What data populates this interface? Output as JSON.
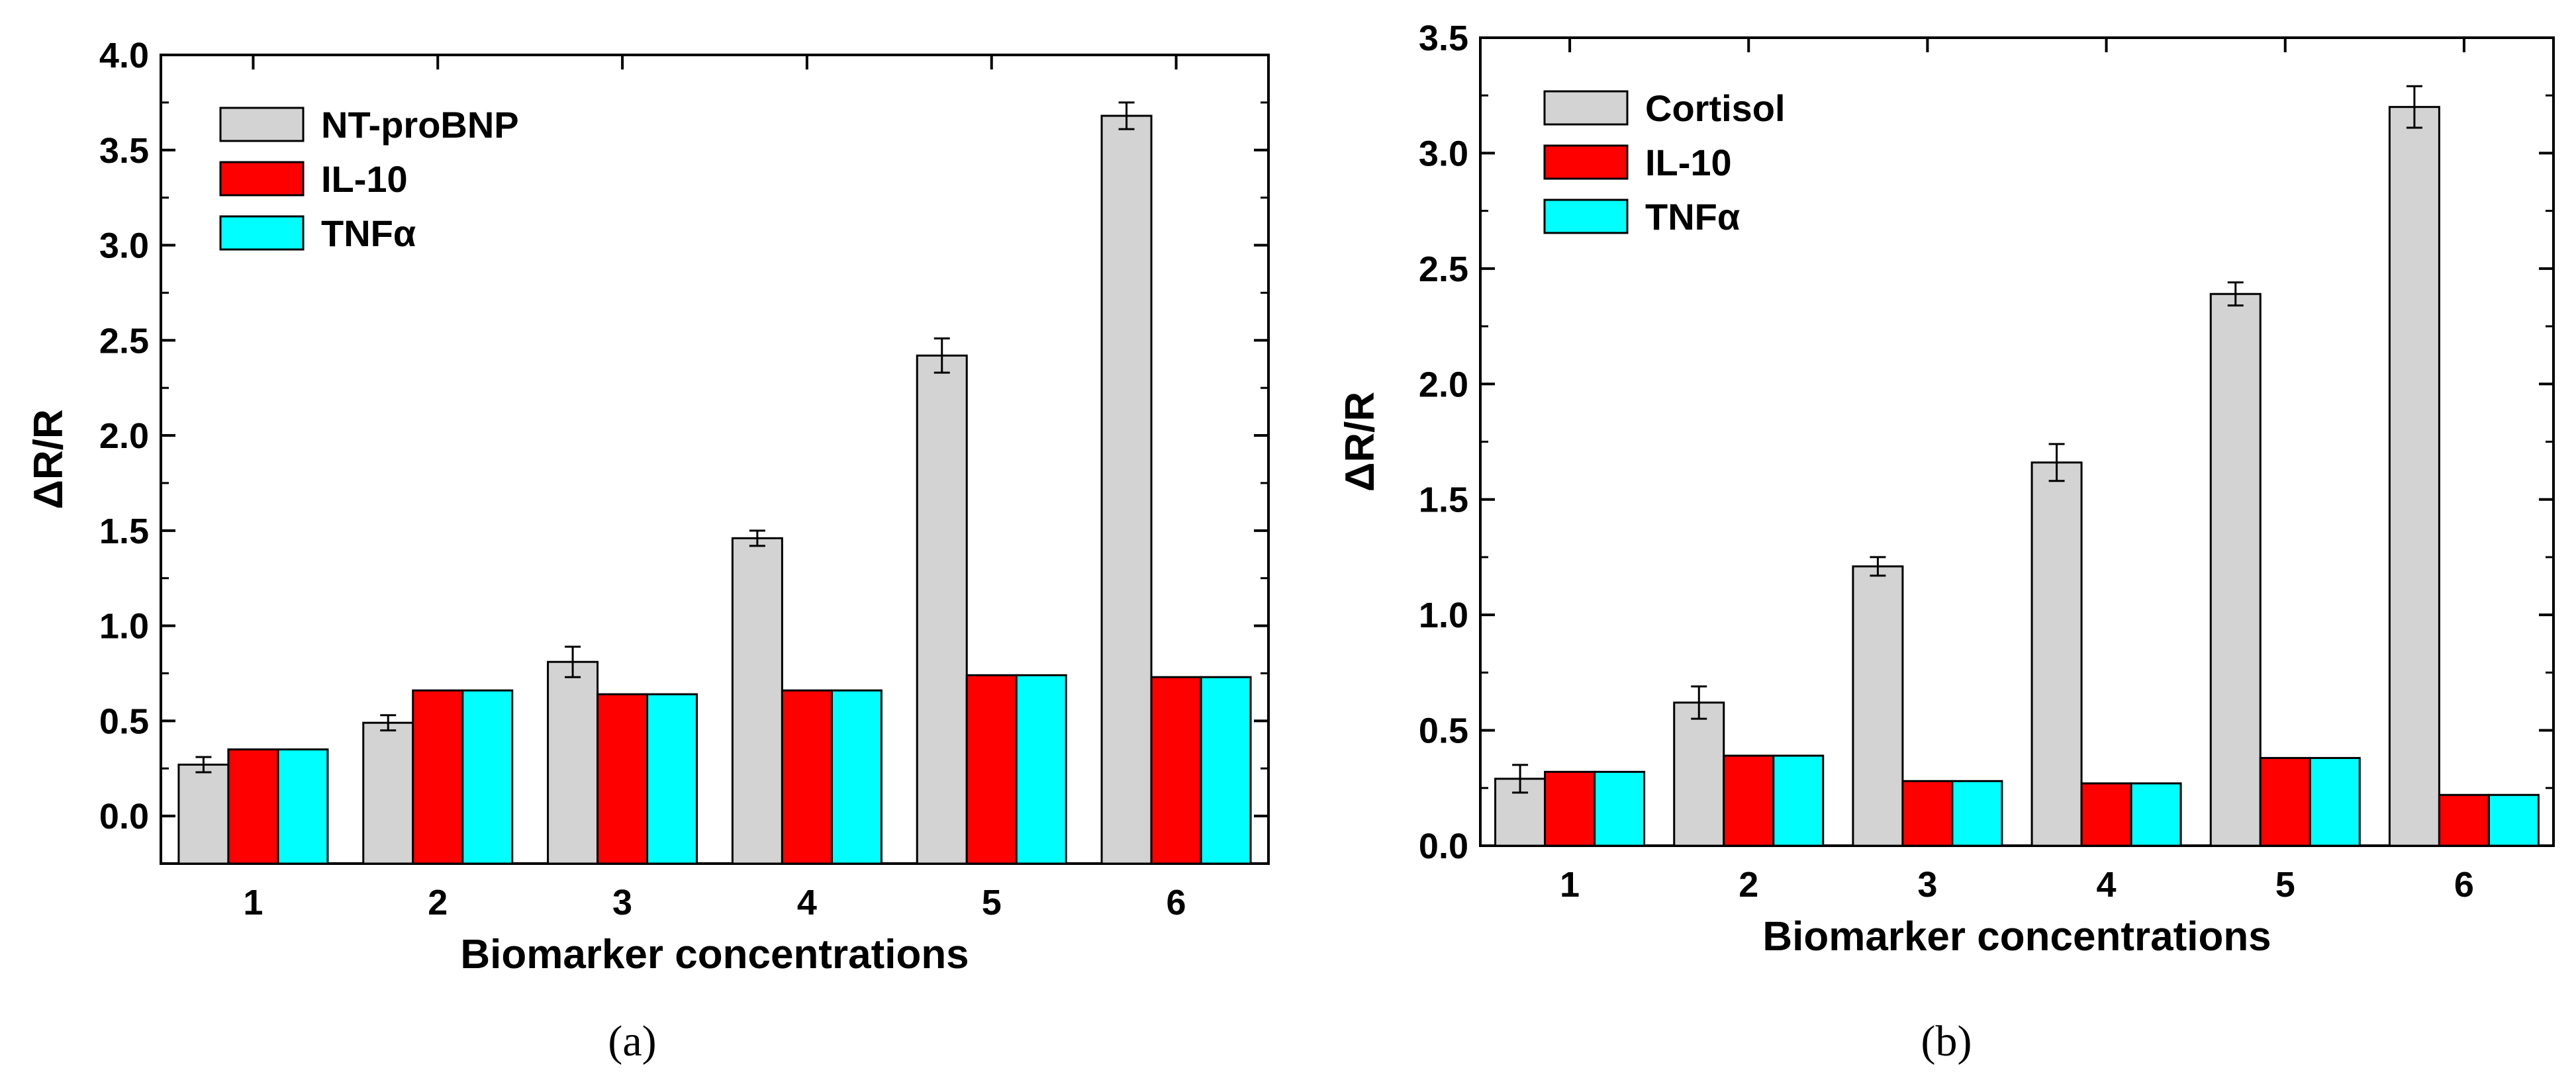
{
  "chart_data": [
    {
      "id": "a",
      "type": "bar",
      "caption": "(a)",
      "xlabel": "Biomarker concentrations",
      "ylabel": "ΔR/R",
      "categories": [
        "1",
        "2",
        "3",
        "4",
        "5",
        "6"
      ],
      "ylim": [
        -0.25,
        4.0
      ],
      "yticks": [
        "0.0",
        "0.5",
        "1.0",
        "1.5",
        "2.0",
        "2.5",
        "3.0",
        "3.5",
        "4.0"
      ],
      "legend_position": "top-left",
      "series": [
        {
          "name": "NT-proBNP",
          "color": "#d3d3d3",
          "values": [
            0.27,
            0.49,
            0.81,
            1.46,
            2.42,
            3.68
          ],
          "errors": [
            0.04,
            0.04,
            0.08,
            0.04,
            0.09,
            0.07
          ]
        },
        {
          "name": "IL-10",
          "color": "#ff0000",
          "values": [
            0.35,
            0.66,
            0.64,
            0.66,
            0.74,
            0.73
          ],
          "errors": null
        },
        {
          "name": "TNFα",
          "color": "#00ffff",
          "values": [
            0.35,
            0.66,
            0.64,
            0.66,
            0.74,
            0.73
          ],
          "errors": null
        }
      ]
    },
    {
      "id": "b",
      "type": "bar",
      "caption": "(b)",
      "xlabel": "Biomarker concentrations",
      "ylabel": "ΔR/R",
      "categories": [
        "1",
        "2",
        "3",
        "4",
        "5",
        "6"
      ],
      "ylim": [
        0.0,
        3.5
      ],
      "yticks": [
        "0.0",
        "0.5",
        "1.0",
        "1.5",
        "2.0",
        "2.5",
        "3.0",
        "3.5"
      ],
      "legend_position": "top-left",
      "series": [
        {
          "name": "Cortisol",
          "color": "#d3d3d3",
          "values": [
            0.29,
            0.62,
            1.21,
            1.66,
            2.39,
            3.2
          ],
          "errors": [
            0.06,
            0.07,
            0.04,
            0.08,
            0.05,
            0.09
          ]
        },
        {
          "name": "IL-10",
          "color": "#ff0000",
          "values": [
            0.32,
            0.39,
            0.28,
            0.27,
            0.38,
            0.22
          ],
          "errors": null
        },
        {
          "name": "TNFα",
          "color": "#00ffff",
          "values": [
            0.32,
            0.39,
            0.28,
            0.27,
            0.38,
            0.22
          ],
          "errors": null
        }
      ]
    }
  ]
}
